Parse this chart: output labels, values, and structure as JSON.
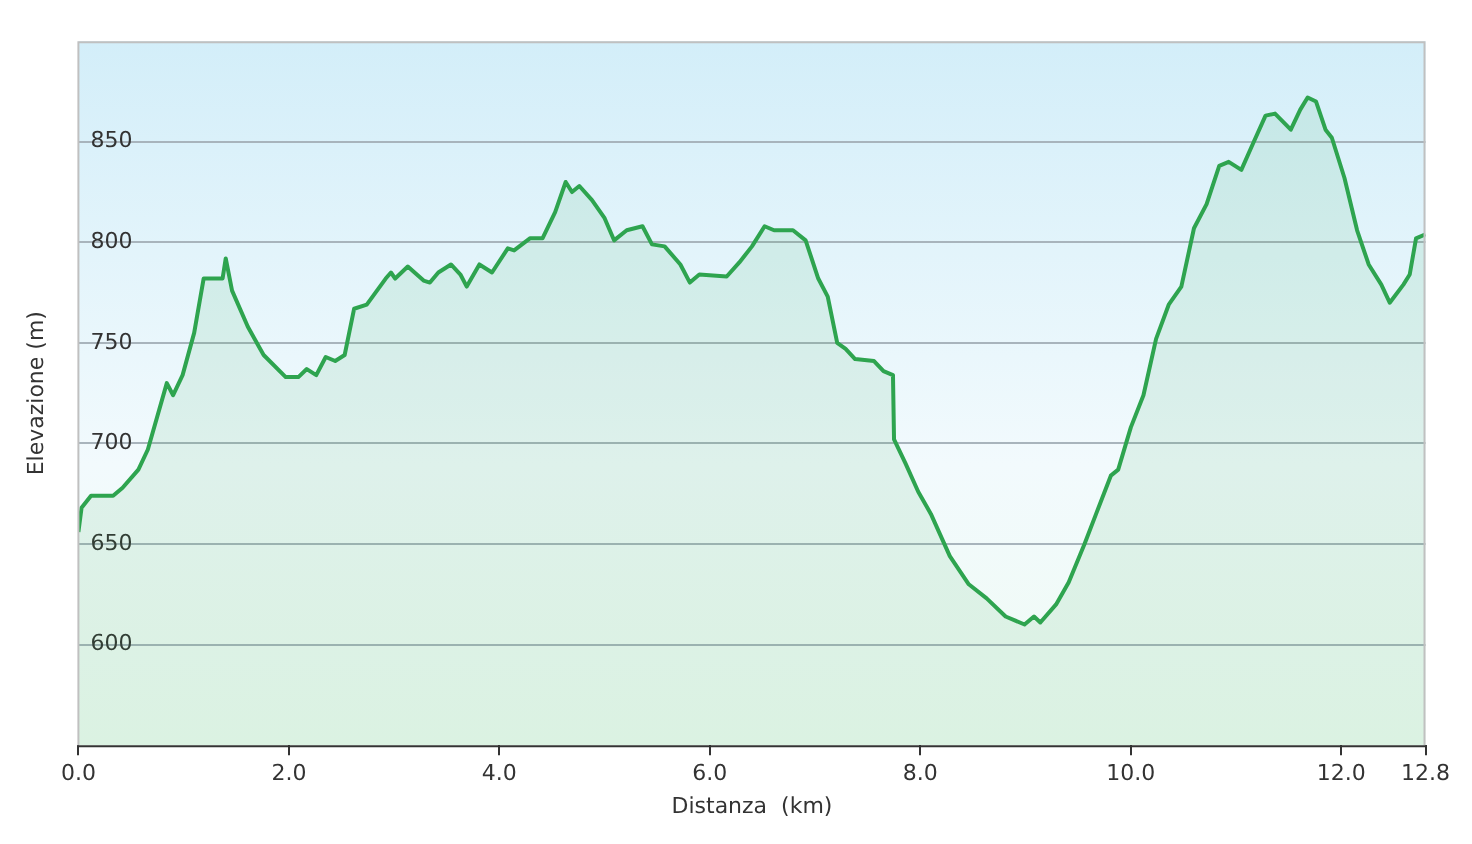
{
  "chart_data": {
    "type": "area",
    "xlabel": "Distanza  (km)",
    "ylabel": "Elevazione (m)",
    "xlim": [
      0,
      12.8
    ],
    "xticks": [
      {
        "value": 0,
        "label": "0.0"
      },
      {
        "value": 2,
        "label": "2.0"
      },
      {
        "value": 4,
        "label": "4.0"
      },
      {
        "value": 6,
        "label": "6.0"
      },
      {
        "value": 8,
        "label": "8.0"
      },
      {
        "value": 10,
        "label": "10.0"
      },
      {
        "value": 12,
        "label": "12.0"
      },
      {
        "value": 12.8,
        "label": "12.8"
      }
    ],
    "ylim": [
      550,
      900
    ],
    "yticks": [
      600,
      650,
      700,
      750,
      800,
      850
    ],
    "grid": "y",
    "legend": false,
    "marker": "none",
    "line_style": "solid",
    "series": [
      {
        "color": "#2ea44f",
        "x": [
          0,
          0.03,
          0.12,
          0.24,
          0.33,
          0.42,
          0.57,
          0.66,
          0.84,
          0.9,
          0.99,
          1.1,
          1.19,
          1.37,
          1.4,
          1.46,
          1.61,
          1.76,
          1.97,
          2.09,
          2.17,
          2.26,
          2.35,
          2.44,
          2.53,
          2.62,
          2.74,
          2.92,
          2.97,
          3.01,
          3.13,
          3.28,
          3.34,
          3.42,
          3.54,
          3.63,
          3.69,
          3.81,
          3.93,
          4.08,
          4.14,
          4.29,
          4.41,
          4.53,
          4.63,
          4.69,
          4.76,
          4.88,
          5.0,
          5.09,
          5.21,
          5.36,
          5.45,
          5.57,
          5.72,
          5.81,
          5.9,
          6.16,
          6.28,
          6.4,
          6.52,
          6.61,
          6.79,
          6.91,
          7.03,
          7.12,
          7.21,
          7.29,
          7.38,
          7.56,
          7.65,
          7.74,
          7.75,
          7.86,
          7.98,
          8.1,
          8.28,
          8.46,
          8.63,
          8.81,
          8.99,
          9.08,
          9.14,
          9.29,
          9.41,
          9.56,
          9.67,
          9.81,
          9.88,
          10.0,
          10.12,
          10.24,
          10.36,
          10.48,
          10.6,
          10.72,
          10.84,
          10.93,
          11.05,
          11.16,
          11.28,
          11.37,
          11.52,
          11.61,
          11.68,
          11.76,
          11.85,
          11.91,
          12.03,
          12.15,
          12.26,
          12.38,
          12.46,
          12.59,
          12.65,
          12.71,
          12.8
        ],
        "values": [
          656,
          668,
          674,
          674,
          674,
          678,
          687,
          697,
          730,
          724,
          734,
          755,
          782,
          782,
          792,
          776,
          758,
          744,
          733,
          733,
          737,
          734,
          743,
          741,
          744,
          767,
          769,
          782,
          785,
          782,
          788,
          781,
          780,
          785,
          789,
          784,
          778,
          789,
          785,
          797,
          796,
          802,
          802,
          815,
          830,
          825,
          828,
          821,
          812,
          801,
          806,
          808,
          799,
          798,
          789,
          780,
          784,
          783,
          790,
          798,
          808,
          806,
          806,
          801,
          782,
          773,
          750,
          747,
          742,
          741,
          736,
          734,
          702,
          690,
          676,
          665,
          644,
          630,
          623,
          614,
          610,
          614,
          611,
          620,
          631,
          650,
          665,
          684,
          687,
          708,
          724,
          752,
          769,
          778,
          807,
          819,
          838,
          840,
          836,
          849,
          863,
          864,
          856,
          866,
          872,
          870,
          856,
          852,
          832,
          806,
          789,
          779,
          770,
          779,
          784,
          802,
          804
        ]
      }
    ]
  }
}
